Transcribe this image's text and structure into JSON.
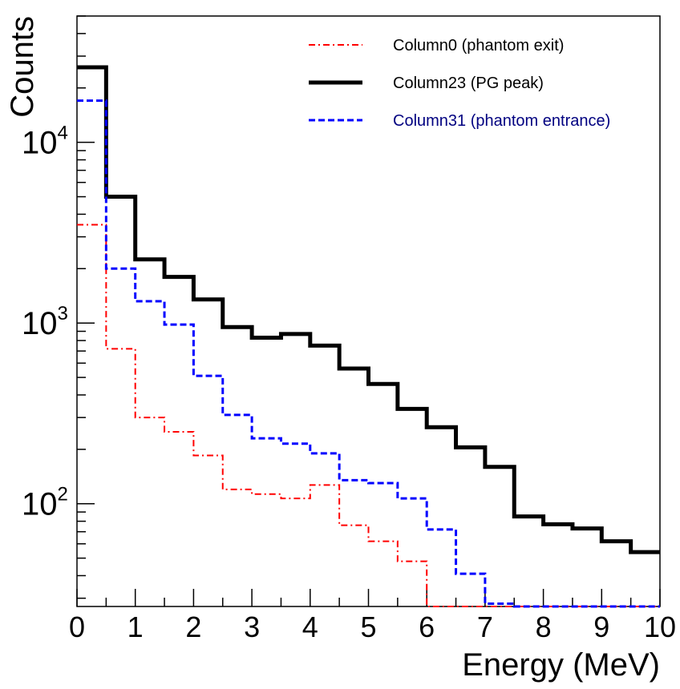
{
  "chart_data": {
    "type": "step-histogram",
    "title": "",
    "xlabel": "Energy (MeV)",
    "ylabel": "Counts",
    "xlim": [
      0,
      10
    ],
    "ylim": [
      27,
      50000
    ],
    "yscale": "log",
    "x_ticks": [
      "0",
      "1",
      "2",
      "3",
      "4",
      "5",
      "6",
      "7",
      "8",
      "9",
      "10"
    ],
    "y_ticks": [
      {
        "value": 100,
        "base": "10",
        "exp": "2"
      },
      {
        "value": 1000,
        "base": "10",
        "exp": "3"
      },
      {
        "value": 10000,
        "base": "10",
        "exp": "4"
      }
    ],
    "bin_edges": [
      0,
      0.5,
      1,
      1.5,
      2,
      2.5,
      3,
      3.5,
      4,
      4.5,
      5,
      5.5,
      6,
      6.5,
      7,
      7.5,
      8,
      8.5,
      9,
      9.5,
      10
    ],
    "series": [
      {
        "name": "Column0 (phantom exit)",
        "color": "#ff0000",
        "line_style": "dash-dot",
        "line_width": 2,
        "legend_text_color": "#000000",
        "values": [
          3500,
          720,
          300,
          250,
          185,
          120,
          113,
          107,
          127,
          76,
          62,
          48,
          27,
          27,
          27,
          27,
          27,
          27,
          27,
          27
        ]
      },
      {
        "name": "Column23 (PG peak)",
        "color": "#000000",
        "line_style": "solid",
        "line_width": 5,
        "legend_text_color": "#000000",
        "values": [
          26000,
          5000,
          2250,
          1800,
          1350,
          950,
          830,
          870,
          750,
          560,
          460,
          335,
          265,
          205,
          160,
          85,
          77,
          73,
          62,
          54
        ]
      },
      {
        "name": "Column31 (phantom entrance)",
        "color": "#0000ff",
        "line_style": "dashed",
        "line_width": 3,
        "legend_text_color": "#000080",
        "values": [
          17000,
          2000,
          1320,
          980,
          510,
          310,
          230,
          215,
          190,
          135,
          130,
          107,
          72,
          41,
          28,
          27,
          27,
          27,
          27,
          27
        ]
      }
    ],
    "legend": {
      "position": "top-right"
    }
  }
}
